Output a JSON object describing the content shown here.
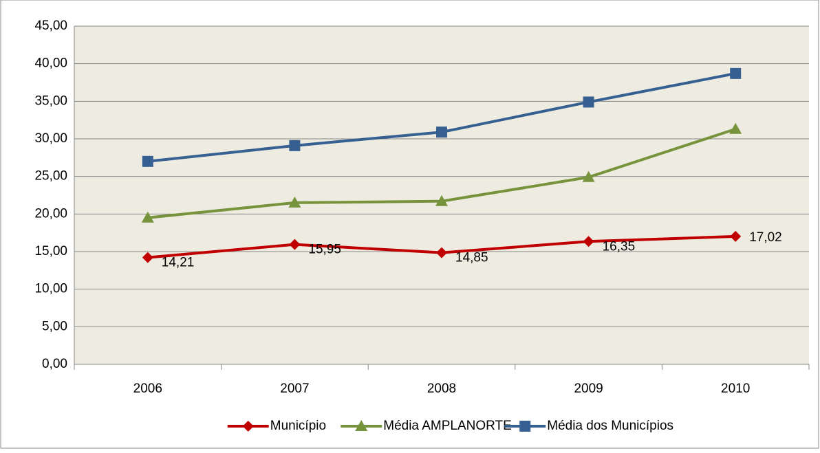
{
  "chart_data": {
    "type": "line",
    "categories": [
      "2006",
      "2007",
      "2008",
      "2009",
      "2010"
    ],
    "series": [
      {
        "name": "Município",
        "color": "#c00000",
        "marker": "diamond",
        "values": [
          14.21,
          15.95,
          14.85,
          16.35,
          17.02
        ],
        "value_labels": [
          "14,21",
          "15,95",
          "14,85",
          "16,35",
          "17,02"
        ]
      },
      {
        "name": "Média AMPLANORTE",
        "color": "#77933c",
        "marker": "triangle",
        "values": [
          19.5,
          21.5,
          21.7,
          24.9,
          31.3
        ]
      },
      {
        "name": "Média dos Municípios",
        "color": "#376092",
        "marker": "square",
        "values": [
          27.0,
          29.1,
          30.9,
          34.9,
          38.7
        ]
      }
    ],
    "ylim": [
      0,
      45
    ],
    "yticks": [
      {
        "value": 0,
        "label": "0,00"
      },
      {
        "value": 5,
        "label": "5,00"
      },
      {
        "value": 10,
        "label": "10,00"
      },
      {
        "value": 15,
        "label": "15,00"
      },
      {
        "value": 20,
        "label": "20,00"
      },
      {
        "value": 25,
        "label": "25,00"
      },
      {
        "value": 30,
        "label": "30,00"
      },
      {
        "value": 35,
        "label": "35,00"
      },
      {
        "value": 40,
        "label": "40,00"
      },
      {
        "value": 45,
        "label": "45,00"
      }
    ],
    "grid": true,
    "legend": "bottom"
  }
}
